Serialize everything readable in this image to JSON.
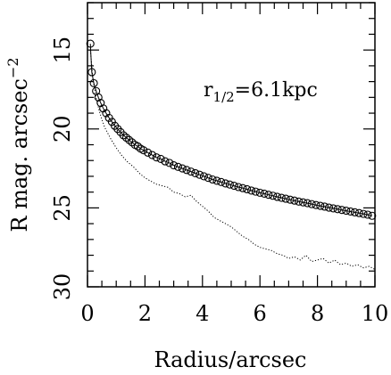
{
  "chart_data": {
    "type": "scatter",
    "xlabel": "Radius/arcsec",
    "ylabel": "R mag. arcsec",
    "ylabel_exponent": "−2",
    "annotation": {
      "prefix": "r",
      "subscript": "1/2",
      "suffix": "=6.1kpc"
    },
    "xlim": [
      0,
      10
    ],
    "ylim": [
      30,
      12
    ],
    "inverted_y": true,
    "x_ticks": [
      0,
      2,
      4,
      6,
      8,
      10
    ],
    "y_ticks": [
      15,
      20,
      25,
      30
    ],
    "grid": false,
    "series": [
      {
        "style": "open-circles-with-line",
        "x": [
          0.1,
          0.15,
          0.22,
          0.3,
          0.38,
          0.46,
          0.55,
          0.65,
          0.75,
          0.85,
          0.95,
          1.05,
          1.15,
          1.25,
          1.35,
          1.45,
          1.55,
          1.65,
          1.75,
          1.85,
          1.95,
          2.1,
          2.25,
          2.4,
          2.55,
          2.7,
          2.85,
          3.0,
          3.15,
          3.3,
          3.45,
          3.6,
          3.75,
          3.9,
          4.05,
          4.2,
          4.35,
          4.5,
          4.65,
          4.8,
          4.95,
          5.1,
          5.25,
          5.4,
          5.55,
          5.7,
          5.85,
          6.0,
          6.15,
          6.3,
          6.45,
          6.6,
          6.75,
          6.9,
          7.05,
          7.2,
          7.35,
          7.5,
          7.65,
          7.8,
          7.95,
          8.1,
          8.25,
          8.4,
          8.55,
          8.7,
          8.85,
          9.0,
          9.15,
          9.3,
          9.45,
          9.6,
          9.75,
          9.9
        ],
        "y": [
          14.6,
          16.4,
          17.1,
          17.6,
          18.0,
          18.35,
          18.7,
          19.0,
          19.3,
          19.55,
          19.8,
          20.0,
          20.2,
          20.4,
          20.55,
          20.7,
          20.85,
          21.0,
          21.1,
          21.25,
          21.35,
          21.5,
          21.65,
          21.8,
          21.9,
          22.05,
          22.15,
          22.3,
          22.4,
          22.5,
          22.6,
          22.7,
          22.8,
          22.9,
          23.0,
          23.1,
          23.2,
          23.28,
          23.36,
          23.45,
          23.52,
          23.6,
          23.68,
          23.75,
          23.82,
          23.9,
          23.97,
          24.04,
          24.1,
          24.17,
          24.23,
          24.3,
          24.36,
          24.42,
          24.48,
          24.54,
          24.6,
          24.65,
          24.7,
          24.76,
          24.82,
          24.87,
          24.92,
          24.98,
          25.03,
          25.08,
          25.13,
          25.18,
          25.23,
          25.28,
          25.33,
          25.38,
          25.43,
          25.5
        ]
      },
      {
        "style": "dotted-line",
        "x": [
          0.1,
          0.2,
          0.3,
          0.4,
          0.5,
          0.6,
          0.8,
          1.0,
          1.2,
          1.4,
          1.6,
          1.8,
          2.0,
          2.2,
          2.4,
          2.6,
          2.8,
          3.0,
          3.2,
          3.4,
          3.6,
          3.8,
          4.0,
          4.2,
          4.4,
          4.6,
          4.8,
          5.0,
          5.2,
          5.4,
          5.6,
          5.8,
          6.0,
          6.2,
          6.4,
          6.6,
          6.8,
          7.0,
          7.2,
          7.4,
          7.6,
          7.8,
          8.0,
          8.2,
          8.4,
          8.6,
          8.8,
          9.0,
          9.2,
          9.4,
          9.6,
          9.8,
          10.0
        ],
        "y": [
          15.0,
          17.0,
          18.0,
          18.8,
          19.4,
          19.9,
          20.6,
          21.2,
          21.7,
          22.1,
          22.4,
          22.8,
          23.1,
          23.3,
          23.5,
          23.6,
          23.7,
          24.0,
          24.1,
          24.3,
          24.2,
          24.6,
          24.9,
          25.2,
          25.6,
          25.8,
          26.0,
          26.2,
          26.5,
          26.8,
          27.0,
          27.3,
          27.5,
          27.6,
          27.7,
          27.9,
          28.0,
          28.2,
          28.1,
          28.3,
          28.0,
          28.4,
          28.3,
          28.2,
          28.5,
          28.3,
          28.6,
          28.5,
          28.7,
          28.6,
          28.8,
          28.7,
          28.9
        ]
      }
    ]
  }
}
